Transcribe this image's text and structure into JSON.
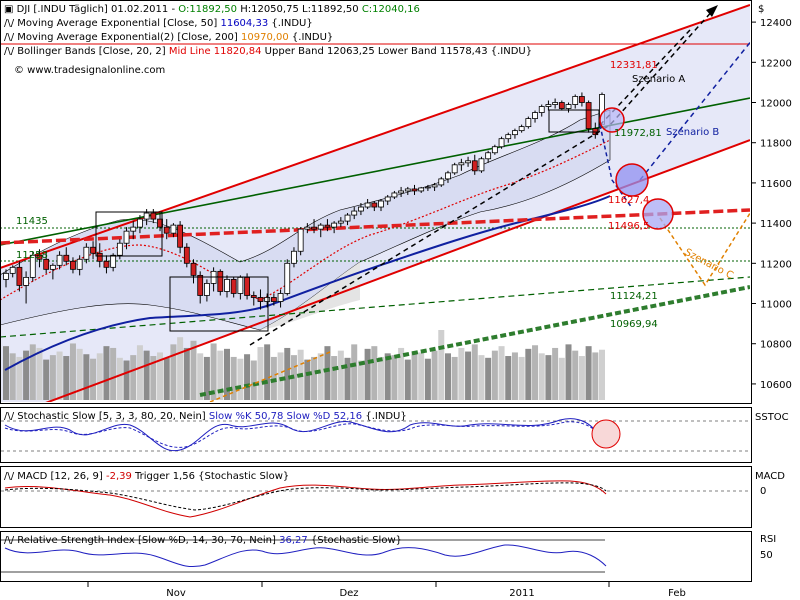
{
  "main_legend": [
    {
      "prefix": "DJI [.INDU Täglich] 01.02.2011 - ",
      "parts": [
        {
          "text": "O:11892,50",
          "color": "#008000"
        },
        {
          "text": " H:12050,75 L:11892,50 ",
          "color": "#000000"
        },
        {
          "text": "C:12040,16",
          "color": "#008000"
        }
      ]
    },
    {
      "prefix": "Moving Average Exponential [Close, 50] ",
      "parts": [
        {
          "text": "11604,33",
          "color": "#0000c0"
        },
        {
          "text": " {.INDU}",
          "color": "#000000"
        }
      ]
    },
    {
      "prefix": "Moving Average Exponential(2) [Close, 200] ",
      "parts": [
        {
          "text": "10970,00",
          "color": "#e08000"
        },
        {
          "text": " {.INDU}",
          "color": "#000000"
        }
      ]
    },
    {
      "prefix": "Bollinger Bands [Close, 20, 2] ",
      "parts": [
        {
          "text": "Mid Line 11820,84",
          "color": "#e00000"
        },
        {
          "text": " Upper Band 12063,25 Lower Band 11578,43 {.INDU}",
          "color": "#000000"
        }
      ]
    }
  ],
  "watermark": "© www.tradesignalonline.com",
  "currency_label": "$",
  "annotations": {
    "scenario_a": "Szenario A",
    "scenario_b": "Szenario B",
    "scenario_c": "Szenario C",
    "level_12331": "12331,81",
    "level_11972": "11972,81",
    "level_11627": "11627,4",
    "level_11496": "11496,5",
    "level_11435": "11435",
    "level_11258": "11258",
    "level_11124": "11124,21",
    "level_10969": "10969,94"
  },
  "stochastic_legend": {
    "prefix": "Stochastic Slow [5, 3, 3, 80, 20, Nein] ",
    "k": "Slow %K 50,78",
    "d": "Slow %D 52,16",
    "suffix": " {.INDU}"
  },
  "stochastic_axis": "SSTOC",
  "macd_legend": {
    "prefix": "MACD [12, 26, 9] ",
    "macd": "-2,39",
    "trigger": "Trigger 1,56",
    "suffix": " {Stochastic Slow}"
  },
  "macd_axis": "MACD",
  "macd_tick": "0",
  "rsi_legend": {
    "prefix": "Relative Strength Index [Slow %D, 14, 30, 70, Nein] ",
    "value": "36,27",
    "suffix": " {Stochastic Slow}"
  },
  "rsi_axis": "RSI",
  "rsi_tick": "50",
  "chart_data": {
    "type": "candlestick",
    "symbol": "DJI",
    "period": "Täglich",
    "x_labels": [
      "Nov",
      "Dez",
      "2011",
      "Feb"
    ],
    "y_ticks": [
      10600,
      10800,
      11000,
      11200,
      11400,
      11600,
      11800,
      12000,
      12200,
      12400
    ],
    "ylim": [
      10520,
      12500
    ],
    "candles": [
      [
        11120,
        11170,
        11080,
        11150
      ],
      [
        11150,
        11190,
        11130,
        11180
      ],
      [
        11180,
        11210,
        11060,
        11090
      ],
      [
        11090,
        11160,
        11000,
        11130
      ],
      [
        11130,
        11260,
        11110,
        11240
      ],
      [
        11240,
        11270,
        11180,
        11220
      ],
      [
        11220,
        11260,
        11150,
        11170
      ],
      [
        11170,
        11200,
        11120,
        11190
      ],
      [
        11190,
        11260,
        11170,
        11240
      ],
      [
        11240,
        11280,
        11190,
        11210
      ],
      [
        11210,
        11230,
        11150,
        11170
      ],
      [
        11170,
        11240,
        11140,
        11220
      ],
      [
        11220,
        11300,
        11200,
        11280
      ],
      [
        11280,
        11310,
        11220,
        11250
      ],
      [
        11250,
        11300,
        11180,
        11210
      ],
      [
        11210,
        11240,
        11150,
        11180
      ],
      [
        11180,
        11250,
        11160,
        11240
      ],
      [
        11240,
        11320,
        11220,
        11300
      ],
      [
        11300,
        11380,
        11270,
        11360
      ],
      [
        11360,
        11410,
        11320,
        11380
      ],
      [
        11380,
        11440,
        11350,
        11420
      ],
      [
        11420,
        11470,
        11390,
        11450
      ],
      [
        11450,
        11470,
        11400,
        11420
      ],
      [
        11420,
        11450,
        11360,
        11380
      ],
      [
        11380,
        11420,
        11320,
        11350
      ],
      [
        11350,
        11400,
        11330,
        11390
      ],
      [
        11390,
        11410,
        11250,
        11280
      ],
      [
        11280,
        11300,
        11180,
        11200
      ],
      [
        11200,
        11220,
        11100,
        11140
      ],
      [
        11140,
        11160,
        11000,
        11040
      ],
      [
        11040,
        11120,
        11010,
        11100
      ],
      [
        11100,
        11180,
        11060,
        11160
      ],
      [
        11160,
        11170,
        11040,
        11060
      ],
      [
        11060,
        11140,
        11030,
        11120
      ],
      [
        11120,
        11130,
        11030,
        11050
      ],
      [
        11050,
        11140,
        11020,
        11130
      ],
      [
        11130,
        11150,
        11020,
        11040
      ],
      [
        11040,
        11060,
        10990,
        11030
      ],
      [
        11030,
        11070,
        10970,
        11010
      ],
      [
        11010,
        11050,
        10980,
        11030
      ],
      [
        11030,
        11050,
        10990,
        11010
      ],
      [
        11010,
        11070,
        10980,
        11050
      ],
      [
        11050,
        11220,
        11040,
        11200
      ],
      [
        11200,
        11280,
        11180,
        11260
      ],
      [
        11260,
        11380,
        11240,
        11370
      ],
      [
        11370,
        11400,
        11350,
        11380
      ],
      [
        11380,
        11420,
        11350,
        11370
      ],
      [
        11370,
        11400,
        11330,
        11390
      ],
      [
        11390,
        11420,
        11360,
        11380
      ],
      [
        11380,
        11410,
        11350,
        11400
      ],
      [
        11400,
        11430,
        11380,
        11410
      ],
      [
        11410,
        11450,
        11390,
        11440
      ],
      [
        11440,
        11480,
        11420,
        11460
      ],
      [
        11460,
        11500,
        11440,
        11480
      ],
      [
        11480,
        11520,
        11470,
        11500
      ],
      [
        11500,
        11510,
        11460,
        11480
      ],
      [
        11480,
        11520,
        11460,
        11510
      ],
      [
        11510,
        11540,
        11490,
        11530
      ],
      [
        11530,
        11560,
        11520,
        11550
      ],
      [
        11550,
        11580,
        11530,
        11560
      ],
      [
        11560,
        11580,
        11540,
        11570
      ],
      [
        11570,
        11590,
        11540,
        11560
      ],
      [
        11560,
        11580,
        11550,
        11575
      ],
      [
        11575,
        11590,
        11560,
        11580
      ],
      [
        11580,
        11600,
        11560,
        11590
      ],
      [
        11590,
        11630,
        11580,
        11620
      ],
      [
        11620,
        11660,
        11600,
        11650
      ],
      [
        11650,
        11700,
        11640,
        11690
      ],
      [
        11690,
        11720,
        11660,
        11700
      ],
      [
        11700,
        11730,
        11680,
        11710
      ],
      [
        11710,
        11740,
        11640,
        11660
      ],
      [
        11660,
        11730,
        11650,
        11720
      ],
      [
        11720,
        11760,
        11700,
        11750
      ],
      [
        11750,
        11790,
        11740,
        11780
      ],
      [
        11780,
        11830,
        11770,
        11820
      ],
      [
        11820,
        11850,
        11800,
        11840
      ],
      [
        11840,
        11870,
        11820,
        11860
      ],
      [
        11860,
        11890,
        11850,
        11880
      ],
      [
        11880,
        11930,
        11870,
        11920
      ],
      [
        11920,
        11960,
        11900,
        11950
      ],
      [
        11950,
        11990,
        11930,
        11980
      ],
      [
        11980,
        12010,
        11960,
        11990
      ],
      [
        11990,
        12020,
        11970,
        12000
      ],
      [
        12000,
        12010,
        11960,
        11970
      ],
      [
        11970,
        12000,
        11950,
        11990
      ],
      [
        11990,
        12040,
        11970,
        12030
      ],
      [
        12030,
        12050,
        11980,
        12000
      ],
      [
        12000,
        12010,
        11850,
        11870
      ],
      [
        11870,
        11900,
        11820,
        11840
      ],
      [
        11892,
        12050,
        11892,
        12040
      ]
    ],
    "volume": [
      60,
      52,
      48,
      55,
      62,
      58,
      45,
      50,
      54,
      49,
      63,
      57,
      51,
      46,
      52,
      60,
      58,
      47,
      44,
      50,
      61,
      55,
      49,
      53,
      47,
      62,
      70,
      58,
      66,
      52,
      48,
      63,
      55,
      57,
      48,
      46,
      51,
      44,
      59,
      62,
      48,
      53,
      58,
      50,
      56,
      45,
      48,
      52,
      60,
      49,
      55,
      47,
      62,
      44,
      57,
      60,
      48,
      52,
      50,
      58,
      45,
      54,
      53,
      46,
      55,
      78,
      52,
      48,
      58,
      54,
      62,
      50,
      47,
      55,
      60,
      49,
      53,
      48,
      57,
      61,
      52,
      50,
      58,
      47,
      62,
      55,
      49,
      60,
      53,
      56
    ],
    "stochastic": {
      "k_value": 50.78,
      "d_value": 52.16
    },
    "macd": {
      "macd_value": -2.39,
      "trigger_value": 1.56
    },
    "rsi": {
      "value": 36.27,
      "levels": [
        30,
        70
      ]
    }
  }
}
